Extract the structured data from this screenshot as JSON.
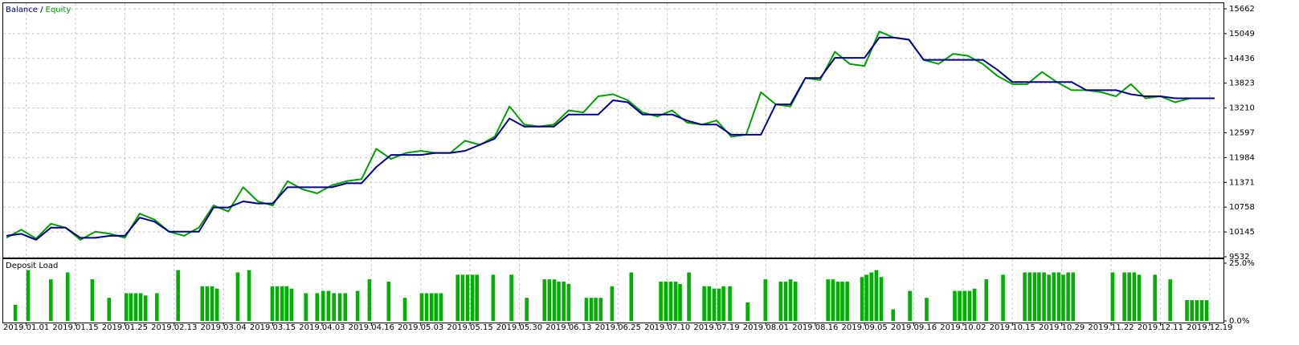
{
  "chart_data": [
    {
      "type": "line",
      "legend_separator": "/",
      "x": [
        -4,
        -1,
        2,
        5,
        8,
        11,
        14,
        17,
        20,
        23,
        26,
        29,
        32,
        35,
        38,
        41,
        44,
        47,
        50,
        53,
        56,
        59,
        62,
        65,
        68,
        71,
        74,
        77,
        80,
        83,
        86,
        89,
        92,
        95,
        98,
        101,
        104,
        107,
        110,
        113,
        116,
        119,
        122,
        125,
        128,
        131,
        134,
        137,
        140,
        143,
        146,
        149,
        152,
        155,
        158,
        161,
        164,
        167,
        170,
        173,
        176,
        179,
        182,
        185,
        188,
        191,
        194,
        197,
        200,
        203,
        206,
        209,
        212,
        215,
        218,
        221,
        224,
        227,
        230,
        233,
        236,
        239,
        241
      ],
      "series": [
        {
          "name": "Balance",
          "color": "#00008b",
          "values": [
            10050,
            10100,
            9950,
            10250,
            10250,
            10000,
            10000,
            10050,
            10050,
            10500,
            10400,
            10150,
            10150,
            10150,
            10750,
            10750,
            10900,
            10850,
            10850,
            11250,
            11250,
            11250,
            11250,
            11350,
            11350,
            11750,
            12050,
            12050,
            12050,
            12100,
            12100,
            12150,
            12300,
            12450,
            12950,
            12750,
            12750,
            12750,
            13050,
            13050,
            13050,
            13400,
            13350,
            13050,
            13050,
            13050,
            12900,
            12800,
            12800,
            12550,
            12550,
            12550,
            13300,
            13300,
            13950,
            13950,
            14450,
            14450,
            14450,
            14950,
            14950,
            14900,
            14400,
            14400,
            14400,
            14400,
            14400,
            14150,
            13850,
            13850,
            13850,
            13850,
            13850,
            13650,
            13650,
            13650,
            13550,
            13500,
            13500,
            13450,
            13450,
            13450,
            13450
          ]
        },
        {
          "name": "Equity",
          "color": "#00a000",
          "values": [
            10000,
            10200,
            9980,
            10350,
            10250,
            9950,
            10150,
            10100,
            10000,
            10600,
            10450,
            10150,
            10050,
            10250,
            10800,
            10650,
            11250,
            10900,
            10800,
            11400,
            11200,
            11100,
            11300,
            11400,
            11450,
            12200,
            11950,
            12100,
            12150,
            12100,
            12100,
            12400,
            12300,
            12500,
            13250,
            12800,
            12750,
            12800,
            13150,
            13100,
            13500,
            13550,
            13400,
            13100,
            13000,
            13150,
            12850,
            12800,
            12900,
            12500,
            12550,
            13600,
            13300,
            13250,
            13950,
            13900,
            14600,
            14300,
            14250,
            15100,
            14950,
            14900,
            14400,
            14300,
            14550,
            14500,
            14300,
            14000,
            13800,
            13800,
            14100,
            13850,
            13650,
            13650,
            13600,
            13500,
            13800,
            13450,
            13500,
            13350,
            13450,
            13450,
            13450
          ]
        }
      ],
      "xlim": [
        -4.5,
        241.5
      ],
      "ylim": [
        9532,
        15662
      ],
      "yticks": [
        9532,
        10145,
        10758,
        11371,
        11984,
        12597,
        13210,
        13823,
        14436,
        15049,
        15662
      ],
      "grid": true
    },
    {
      "type": "bar",
      "title": "Deposit Load",
      "color": "#00b000",
      "x": [
        -2.2,
        0.4,
        5.0,
        8.4,
        13.4,
        16.8,
        20.3,
        21.2,
        22.2,
        23.2,
        24.2,
        26.5,
        30.8,
        35.7,
        36.7,
        37.7,
        38.7,
        42.9,
        45.2,
        49.9,
        50.9,
        51.9,
        52.8,
        53.8,
        56.7,
        59.0,
        60.2,
        61.3,
        62.4,
        63.6,
        64.7,
        67.2,
        69.6,
        73.5,
        76.8,
        80.2,
        81.2,
        82.2,
        83.1,
        84.1,
        87.5,
        88.5,
        89.5,
        90.5,
        91.4,
        94.7,
        98.4,
        101.5,
        105.1,
        106.1,
        107.1,
        108.0,
        109.0,
        110.0,
        113.6,
        114.6,
        115.5,
        116.5,
        118.8,
        122.7,
        128.7,
        129.7,
        130.7,
        131.7,
        132.6,
        134.4,
        137.5,
        138.5,
        139.5,
        140.5,
        141.4,
        142.7,
        146.3,
        149.9,
        153.0,
        154.0,
        155.0,
        156.0,
        162.6,
        163.6,
        164.6,
        165.5,
        166.5,
        169.5,
        170.4,
        171.4,
        172.4,
        173.4,
        175.8,
        179.2,
        182.6,
        188.3,
        189.3,
        190.3,
        191.3,
        192.3,
        194.7,
        198.1,
        202.5,
        203.5,
        204.5,
        205.4,
        206.4,
        207.4,
        208.4,
        209.4,
        210.3,
        211.3,
        212.3,
        220.3,
        222.7,
        223.7,
        224.7,
        225.7,
        228.9,
        232.0,
        235.4,
        236.4,
        237.4,
        238.4,
        239.4
      ],
      "values": [
        7,
        22,
        18,
        21,
        18,
        10,
        12,
        12,
        12,
        12,
        11,
        12,
        22,
        15,
        15,
        15,
        14,
        21,
        22,
        15,
        15,
        15,
        15,
        14,
        12,
        12,
        13,
        13,
        12,
        12,
        12,
        13,
        18,
        17,
        10,
        12,
        12,
        12,
        12,
        12,
        20,
        20,
        20,
        20,
        20,
        20,
        20,
        10,
        18,
        18,
        18,
        17,
        17,
        16,
        10,
        10,
        10,
        10,
        15,
        21,
        17,
        17,
        17,
        17,
        16,
        21,
        15,
        15,
        14,
        14,
        15,
        15,
        8,
        18,
        17,
        17,
        18,
        17,
        18,
        18,
        17,
        17,
        17,
        19,
        20,
        21,
        22,
        19,
        5,
        13,
        10,
        13,
        13,
        13,
        13,
        14,
        18,
        20,
        21,
        21,
        21,
        21,
        21,
        20,
        21,
        21,
        20,
        21,
        21,
        21,
        21,
        21,
        21,
        20,
        20,
        18,
        9,
        9,
        9,
        9,
        9
      ],
      "xlim": [
        -4.5,
        241.5
      ],
      "ylim": [
        0,
        25
      ],
      "yticks": [
        {
          "value": 0,
          "label": "0.0%"
        },
        {
          "value": 25,
          "label": "25.0%"
        }
      ],
      "xticks": [
        {
          "value": 0,
          "label": "2019.01.01"
        },
        {
          "value": 10,
          "label": "2019.01.15"
        },
        {
          "value": 20,
          "label": "2019.01.25"
        },
        {
          "value": 30,
          "label": "2019.02.13"
        },
        {
          "value": 40,
          "label": "2019.03.04"
        },
        {
          "value": 50,
          "label": "2019.03.15"
        },
        {
          "value": 60,
          "label": "2019.04.03"
        },
        {
          "value": 70,
          "label": "2019.04.16"
        },
        {
          "value": 80,
          "label": "2019.05.03"
        },
        {
          "value": 90,
          "label": "2019.05.15"
        },
        {
          "value": 100,
          "label": "2019.05.30"
        },
        {
          "value": 110,
          "label": "2019.06.13"
        },
        {
          "value": 120,
          "label": "2019.06.25"
        },
        {
          "value": 130,
          "label": "2019.07.10"
        },
        {
          "value": 140,
          "label": "2019.07.19"
        },
        {
          "value": 150,
          "label": "2019.08.01"
        },
        {
          "value": 160,
          "label": "2019.08.16"
        },
        {
          "value": 170,
          "label": "2019.09.05"
        },
        {
          "value": 180,
          "label": "2019.09.16"
        },
        {
          "value": 190,
          "label": "2019.10.02"
        },
        {
          "value": 200,
          "label": "2019.10.15"
        },
        {
          "value": 210,
          "label": "2019.10.29"
        },
        {
          "value": 220,
          "label": "2019.11.22"
        },
        {
          "value": 230,
          "label": "2019.12.11"
        },
        {
          "value": 240,
          "label": "2019.12.19"
        }
      ],
      "grid": true
    }
  ]
}
